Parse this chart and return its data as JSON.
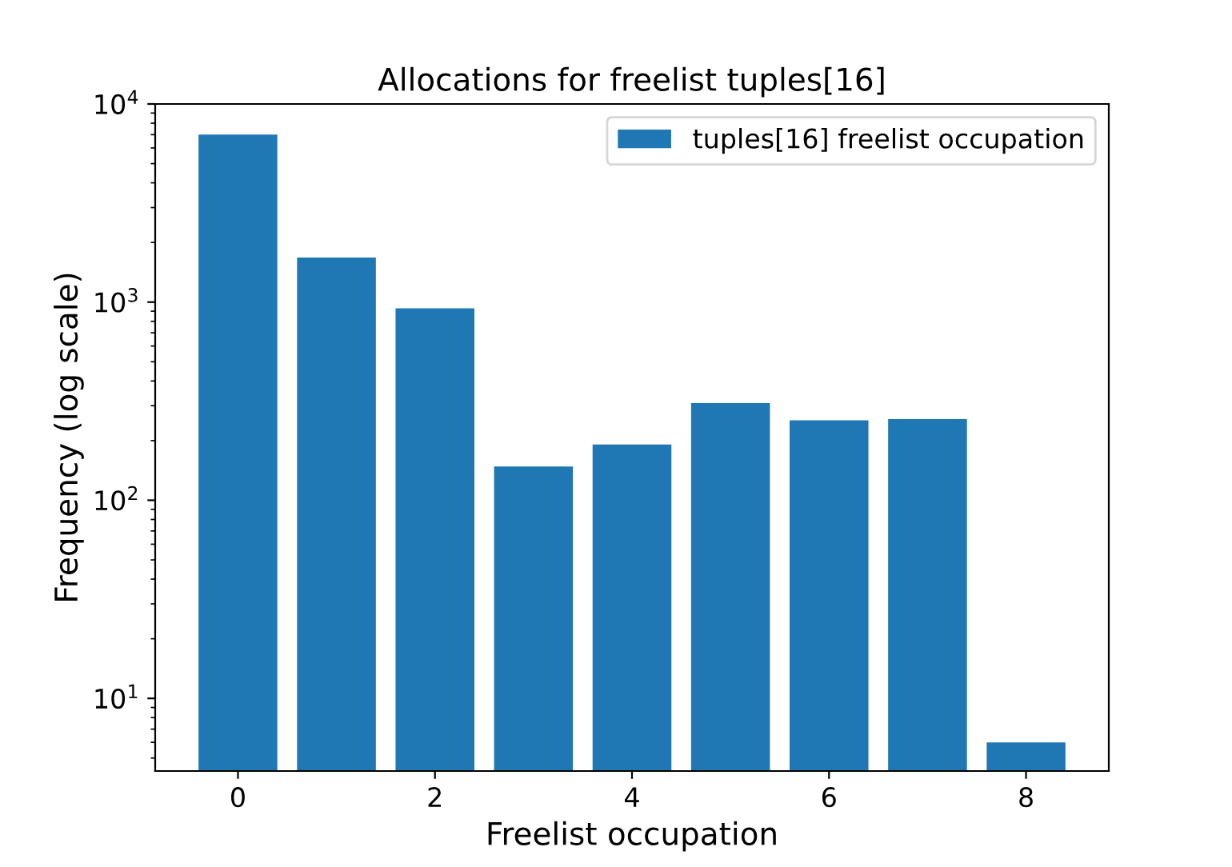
{
  "chart_data": {
    "type": "bar",
    "title": "Allocations for freelist tuples[16]",
    "xlabel": "Freelist occupation",
    "ylabel": "Frequency (log scale)",
    "x": [
      0,
      1,
      2,
      3,
      4,
      5,
      6,
      7,
      8
    ],
    "series": [
      {
        "name": "tuples[16] freelist occupation",
        "color": "#1f77b4",
        "values": [
          7000,
          1680,
          930,
          148,
          191,
          309,
          253,
          257,
          6
        ]
      }
    ],
    "log": "y",
    "xlim": [
      -0.84,
      8.84
    ],
    "xticks": [
      0,
      2,
      4,
      6,
      8
    ],
    "ylim": [
      4.3,
      10000
    ],
    "yticks": [
      {
        "value": 10,
        "label": "10$^{1}$"
      },
      {
        "value": 100,
        "label": "10$^{2}$"
      },
      {
        "value": 1000,
        "label": "10$^{3}$"
      },
      {
        "value": 10000,
        "label": "10$^{4}$"
      }
    ],
    "grid": false,
    "legend": "top right"
  }
}
